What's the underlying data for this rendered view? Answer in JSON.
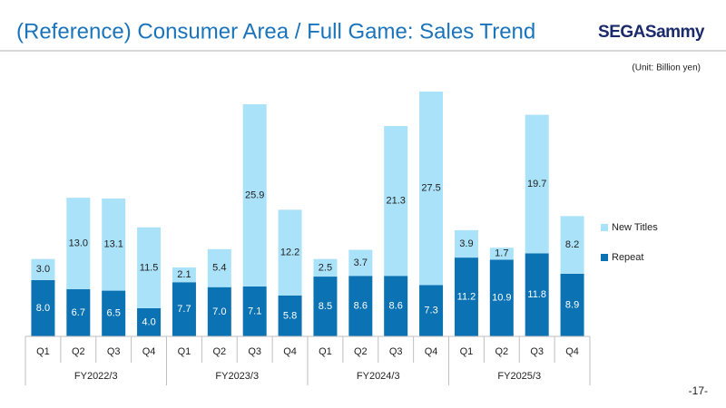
{
  "logo": "SEGASammy",
  "page_number": "-17-",
  "chart_data": {
    "type": "stacked_bar",
    "title": "(Reference) Consumer Area / Full Game: Sales Trend",
    "unit_note": "(Unit: Billion yen)",
    "categories": [
      "Q1",
      "Q2",
      "Q3",
      "Q4",
      "Q1",
      "Q2",
      "Q3",
      "Q4",
      "Q1",
      "Q2",
      "Q3",
      "Q4",
      "Q1",
      "Q2",
      "Q3",
      "Q4"
    ],
    "groups": [
      "FY2022/3",
      "FY2023/3",
      "FY2024/3",
      "FY2025/3"
    ],
    "legend": "right",
    "series": [
      {
        "name": "Repeat",
        "color": "#0b72b3",
        "values": [
          8.0,
          6.7,
          6.5,
          4.0,
          7.7,
          7.0,
          7.1,
          5.8,
          8.5,
          8.6,
          8.6,
          7.3,
          11.2,
          10.9,
          11.8,
          8.9
        ],
        "value_labels": [
          "8.0",
          "6.7",
          "6.5",
          "4.0",
          "7.7",
          "7.0",
          "7.1",
          "5.8",
          "8.5",
          "8.6",
          "8.6",
          "7.3",
          "11.2",
          "10.9",
          "11.8",
          "8.9"
        ]
      },
      {
        "name": "New Titles",
        "color": "#aae2f9",
        "values": [
          3.0,
          13.0,
          13.1,
          11.5,
          2.1,
          5.4,
          25.9,
          12.2,
          2.5,
          3.7,
          21.3,
          27.5,
          3.9,
          1.7,
          19.7,
          8.2
        ],
        "value_labels": [
          "3.0",
          "13.0",
          "13.1",
          "11.5",
          "2.1",
          "5.4",
          "25.9",
          "12.2",
          "2.5",
          "3.7",
          "21.3",
          "27.5",
          "3.9",
          "1.7",
          "19.7",
          "8.2"
        ]
      }
    ]
  }
}
